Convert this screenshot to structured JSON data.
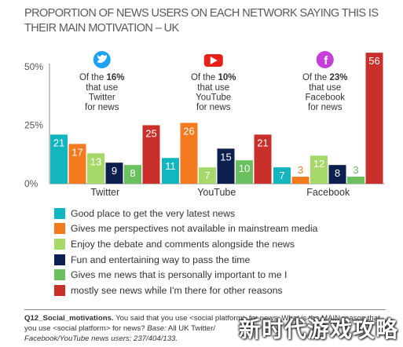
{
  "chart_data": {
    "type": "bar",
    "title": "PROPORTION OF NEWS USERS ON EACH NETWORK SAYING THIS IS THEIR MAIN MOTIVATION – UK",
    "categories": [
      "Twitter",
      "YouTube",
      "Facebook"
    ],
    "ylim": [
      0,
      60
    ],
    "yticks": [
      {
        "value": 0,
        "label": "0%"
      },
      {
        "value": 25,
        "label": "25%"
      },
      {
        "value": 50,
        "label": "50%"
      }
    ],
    "series": [
      {
        "name": "Good place to get the very latest news",
        "color": "#13b5bf",
        "values": [
          21,
          11,
          7
        ]
      },
      {
        "name": "Gives me perspectives not available in mainstream media",
        "color": "#f47a20",
        "values": [
          17,
          26,
          3
        ]
      },
      {
        "name": "Enjoy the debate and comments alongside the news",
        "color": "#a6d96a",
        "values": [
          13,
          7,
          12
        ]
      },
      {
        "name": "Fun and entertaining way to pass the time",
        "color": "#0d1f4f",
        "values": [
          9,
          15,
          8
        ]
      },
      {
        "name": "Gives me news that is personally important to me I",
        "color": "#6abf5e",
        "values": [
          8,
          10,
          3
        ]
      },
      {
        "name": "mostly see news while I'm there for other reasons",
        "color": "#c9302c",
        "values": [
          25,
          21,
          56
        ]
      }
    ],
    "value_label_colors": [
      "#ffffff",
      "#ffffff",
      "#ffffff",
      "#ffffff",
      "#ffffff",
      "#ffffff"
    ],
    "small_value_label_colors": [
      "#13b5bf",
      "#f47a20",
      "#a6d96a",
      "#0d1f4f",
      "#6abf5e",
      "#c9302c"
    ],
    "annotations": [
      {
        "network": "Twitter",
        "icon": "twitter-icon",
        "icon_color": "#1da1f2",
        "prefix": "Of the ",
        "pct": "16%",
        "lines": [
          "that use",
          "Twitter",
          "for news"
        ]
      },
      {
        "network": "YouTube",
        "icon": "youtube-icon",
        "icon_color": "#e62117",
        "prefix": "Of the ",
        "pct": "10%",
        "lines": [
          "that use",
          "YouTube",
          "for news"
        ]
      },
      {
        "network": "Facebook",
        "icon": "facebook-icon",
        "icon_color": "#c53fd8",
        "prefix": "Of the ",
        "pct": "23%",
        "lines": [
          "that use",
          "Facebook",
          "for news"
        ]
      }
    ]
  },
  "footnote": {
    "question_label": "Q12_Social_motivations.",
    "question_text": " You said that you use <social platform> for news. What is the MAIN reason that you use <social platform> for news? ",
    "base_label": "Base:",
    "base_text": " All UK Twitter/",
    "note": "Facebook/YouTube news users: 237/404/133."
  },
  "watermark": "新时代游戏攻略"
}
